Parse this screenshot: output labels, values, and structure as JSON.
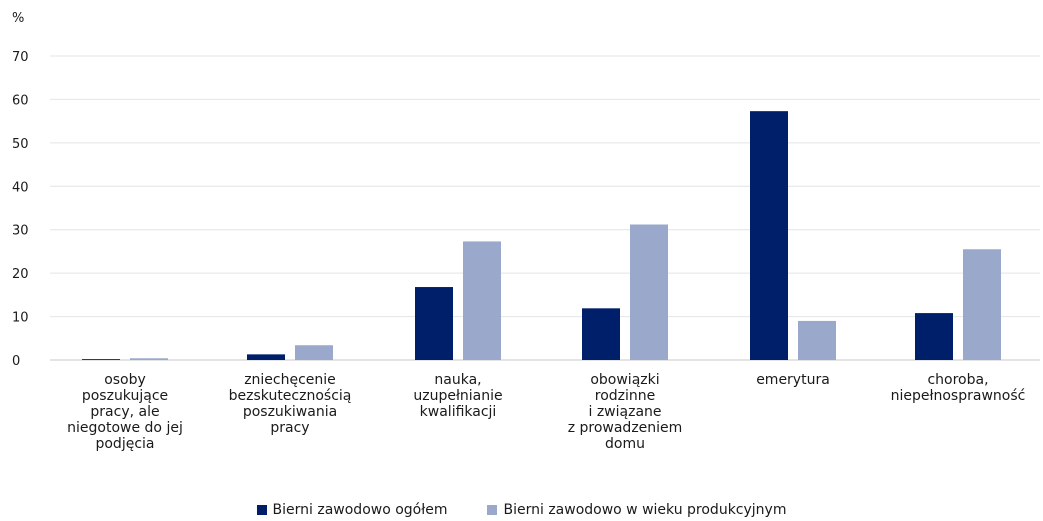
{
  "chart_data": {
    "type": "bar",
    "ylabel": "%",
    "ylim": [
      0,
      70
    ],
    "yticks": [
      0,
      10,
      20,
      30,
      40,
      50,
      60,
      70
    ],
    "grid": true,
    "legend_position": "bottom",
    "categories": [
      [
        "osoby",
        "poszukujące",
        "pracy, ale",
        "niegotowe do jej",
        "podjęcia"
      ],
      [
        "zniechęcenie",
        "bezskutecznością",
        "poszukiwania",
        "pracy"
      ],
      [
        "nauka,",
        "uzupełnianie",
        "kwalifikacji"
      ],
      [
        "obowiązki",
        "rodzinne",
        "i związane",
        "z prowadzeniem",
        "domu"
      ],
      [
        "emerytura"
      ],
      [
        "choroba,",
        "niepełnosprawność"
      ]
    ],
    "series": [
      {
        "name": "Bierni zawodowo ogółem",
        "color": "#001f6b",
        "values": [
          0.2,
          1.3,
          16.8,
          11.9,
          57.3,
          10.8
        ]
      },
      {
        "name": "Bierni zawodowo w wieku produkcyjnym",
        "color": "#9aa8cc",
        "values": [
          0.4,
          3.4,
          27.3,
          31.2,
          9.0,
          25.5
        ]
      }
    ]
  }
}
